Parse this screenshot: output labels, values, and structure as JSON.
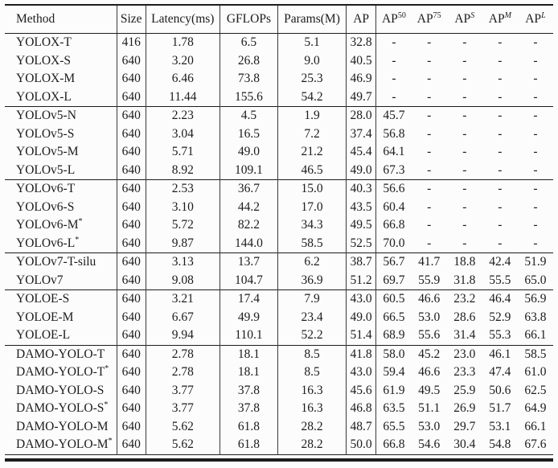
{
  "colors": {
    "background": "#fcfcfc",
    "text": "#1c1c1c",
    "rule": "#1c1c1c",
    "vertical_rule": "#3a3a3a"
  },
  "table": {
    "columns": [
      {
        "label": "Method",
        "sup": "",
        "italic_sup": false
      },
      {
        "label": "Size",
        "sup": "",
        "italic_sup": false
      },
      {
        "label": "Latency(ms)",
        "sup": "",
        "italic_sup": false
      },
      {
        "label": "GFLOPs",
        "sup": "",
        "italic_sup": false
      },
      {
        "label": "Params(M)",
        "sup": "",
        "italic_sup": false
      },
      {
        "label": "AP",
        "sup": "",
        "italic_sup": false
      },
      {
        "label": "AP",
        "sup": "50",
        "italic_sup": false
      },
      {
        "label": "AP",
        "sup": "75",
        "italic_sup": false
      },
      {
        "label": "AP",
        "sup": "S",
        "italic_sup": true
      },
      {
        "label": "AP",
        "sup": "M",
        "italic_sup": true
      },
      {
        "label": "AP",
        "sup": "L",
        "italic_sup": true
      }
    ],
    "groups": [
      {
        "rows": [
          [
            "YOLOX-T",
            "416",
            "1.78",
            "6.5",
            "5.1",
            "32.8",
            "-",
            "-",
            "-",
            "-",
            "-"
          ],
          [
            "YOLOX-S",
            "640",
            "3.20",
            "26.8",
            "9.0",
            "40.5",
            "-",
            "-",
            "-",
            "-",
            "-"
          ],
          [
            "YOLOX-M",
            "640",
            "6.46",
            "73.8",
            "25.3",
            "46.9",
            "-",
            "-",
            "-",
            "-",
            "-"
          ],
          [
            "YOLOX-L",
            "640",
            "11.44",
            "155.6",
            "54.2",
            "49.7",
            "-",
            "-",
            "-",
            "-",
            "-"
          ]
        ]
      },
      {
        "rows": [
          [
            "YOLOv5-N",
            "640",
            "2.23",
            "4.5",
            "1.9",
            "28.0",
            "45.7",
            "-",
            "-",
            "-",
            "-"
          ],
          [
            "YOLOv5-S",
            "640",
            "3.04",
            "16.5",
            "7.2",
            "37.4",
            "56.8",
            "-",
            "-",
            "-",
            "-"
          ],
          [
            "YOLOv5-M",
            "640",
            "5.71",
            "49.0",
            "21.2",
            "45.4",
            "64.1",
            "-",
            "-",
            "-",
            "-"
          ],
          [
            "YOLOv5-L",
            "640",
            "8.92",
            "109.1",
            "46.5",
            "49.0",
            "67.3",
            "-",
            "-",
            "-",
            "-"
          ]
        ]
      },
      {
        "rows": [
          [
            "YOLOv6-T",
            "640",
            "2.53",
            "36.7",
            "15.0",
            "40.3",
            "56.6",
            "-",
            "-",
            "-",
            "-"
          ],
          [
            "YOLOv6-S",
            "640",
            "3.10",
            "44.2",
            "17.0",
            "43.5",
            "60.4",
            "-",
            "-",
            "-",
            "-"
          ],
          [
            "YOLOv6-M*",
            "640",
            "5.72",
            "82.2",
            "34.3",
            "49.5",
            "66.8",
            "-",
            "-",
            "-",
            "-"
          ],
          [
            "YOLOv6-L*",
            "640",
            "9.87",
            "144.0",
            "58.5",
            "52.5",
            "70.0",
            "-",
            "-",
            "-",
            "-"
          ]
        ]
      },
      {
        "rows": [
          [
            "YOLOv7-T-silu",
            "640",
            "3.13",
            "13.7",
            "6.2",
            "38.7",
            "56.7",
            "41.7",
            "18.8",
            "42.4",
            "51.9"
          ],
          [
            "YOLOv7",
            "640",
            "9.08",
            "104.7",
            "36.9",
            "51.2",
            "69.7",
            "55.9",
            "31.8",
            "55.5",
            "65.0"
          ]
        ]
      },
      {
        "rows": [
          [
            "YOLOE-S",
            "640",
            "3.21",
            "17.4",
            "7.9",
            "43.0",
            "60.5",
            "46.6",
            "23.2",
            "46.4",
            "56.9"
          ],
          [
            "YOLOE-M",
            "640",
            "6.67",
            "49.9",
            "23.4",
            "49.0",
            "66.5",
            "53.0",
            "28.6",
            "52.9",
            "63.8"
          ],
          [
            "YOLOE-L",
            "640",
            "9.94",
            "110.1",
            "52.2",
            "51.4",
            "68.9",
            "55.6",
            "31.4",
            "55.3",
            "66.1"
          ]
        ]
      },
      {
        "rows": [
          [
            "DAMO-YOLO-T",
            "640",
            "2.78",
            "18.1",
            "8.5",
            "41.8",
            "58.0",
            "45.2",
            "23.0",
            "46.1",
            "58.5"
          ],
          [
            "DAMO-YOLO-T*",
            "640",
            "2.78",
            "18.1",
            "8.5",
            "43.0",
            "59.4",
            "46.6",
            "23.3",
            "47.4",
            "61.0"
          ],
          [
            "DAMO-YOLO-S",
            "640",
            "3.77",
            "37.8",
            "16.3",
            "45.6",
            "61.9",
            "49.5",
            "25.9",
            "50.6",
            "62.5"
          ],
          [
            "DAMO-YOLO-S*",
            "640",
            "3.77",
            "37.8",
            "16.3",
            "46.8",
            "63.5",
            "51.1",
            "26.9",
            "51.7",
            "64.9"
          ],
          [
            "DAMO-YOLO-M",
            "640",
            "5.62",
            "61.8",
            "28.2",
            "48.7",
            "65.5",
            "53.0",
            "29.7",
            "53.1",
            "66.1"
          ],
          [
            "DAMO-YOLO-M*",
            "640",
            "5.62",
            "61.8",
            "28.2",
            "50.0",
            "66.8",
            "54.6",
            "30.4",
            "54.8",
            "67.6"
          ]
        ]
      }
    ]
  }
}
